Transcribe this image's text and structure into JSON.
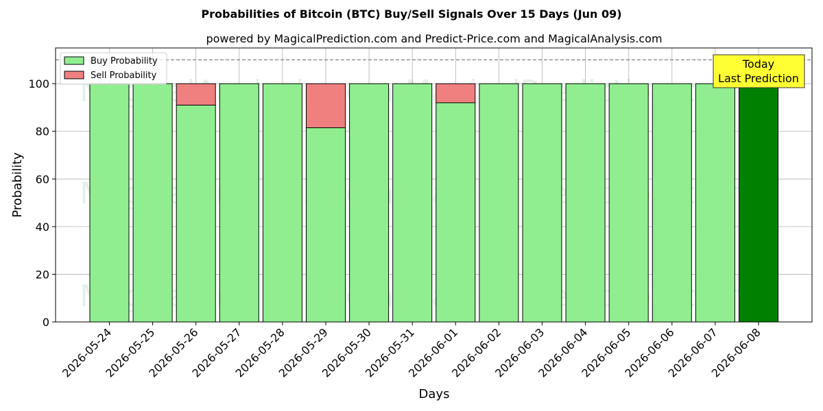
{
  "chart_data": {
    "type": "bar",
    "title": "Probabilities of Bitcoin (BTC) Buy/Sell Signals Over 15 Days (Jun 09)",
    "subtitle": "powered by MagicalPrediction.com and Predict-Price.com and MagicalAnalysis.com",
    "xlabel": "Days",
    "ylabel": "Probability",
    "ylim": [
      0,
      115
    ],
    "yticks": [
      0,
      20,
      40,
      60,
      80,
      100
    ],
    "grid": true,
    "reference_line": 110,
    "categories": [
      "2026-05-24",
      "2026-05-25",
      "2026-05-26",
      "2026-05-27",
      "2026-05-28",
      "2026-05-29",
      "2026-05-30",
      "2026-05-31",
      "2026-06-01",
      "2026-06-02",
      "2026-06-03",
      "2026-06-04",
      "2026-06-05",
      "2026-06-06",
      "2026-06-07",
      "2026-06-08"
    ],
    "series": [
      {
        "name": "Buy Probability",
        "color": "#90ee90",
        "values": [
          100,
          100,
          91,
          100,
          100,
          81.5,
          100,
          100,
          92,
          100,
          100,
          100,
          100,
          100,
          100,
          100
        ]
      },
      {
        "name": "Sell Probability",
        "color": "#f08080",
        "values": [
          0,
          0,
          9,
          0,
          0,
          18.5,
          0,
          0,
          8,
          0,
          0,
          0,
          0,
          0,
          0,
          0
        ]
      }
    ],
    "highlight": {
      "index": 15,
      "color": "#008000"
    },
    "legend_position": "top-left",
    "annotation": {
      "lines": [
        "Today",
        "Last Prediction"
      ],
      "background": "#ffff33"
    },
    "watermarks": [
      "MagicalAnalysis.com",
      "MagicalPrediction.com"
    ]
  }
}
